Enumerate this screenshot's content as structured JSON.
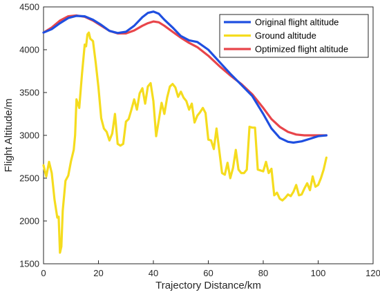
{
  "chart_data": {
    "type": "line",
    "xlabel": "Trajectory Distance/km",
    "ylabel": "Flight Altitude/m",
    "xlim": [
      0,
      120
    ],
    "ylim": [
      1500,
      4500
    ],
    "xticks": [
      0,
      20,
      40,
      60,
      80,
      100,
      120
    ],
    "yticks": [
      1500,
      2000,
      2500,
      3000,
      3500,
      4000,
      4500
    ],
    "grid": false,
    "legend_position": "top-right",
    "series": [
      {
        "name": "Original flight altitude",
        "color": "#1f4fe0",
        "x": [
          0,
          3,
          6,
          9,
          12,
          15,
          18,
          21,
          24,
          27,
          30,
          33,
          36,
          38,
          40,
          42,
          44,
          47,
          50,
          53,
          56,
          60,
          64,
          68,
          72,
          76,
          80,
          83,
          86,
          89,
          91,
          94,
          97,
          100,
          103
        ],
        "y": [
          4200,
          4240,
          4310,
          4370,
          4395,
          4390,
          4350,
          4290,
          4220,
          4195,
          4210,
          4280,
          4380,
          4430,
          4445,
          4420,
          4350,
          4260,
          4160,
          4110,
          4090,
          4000,
          3860,
          3720,
          3590,
          3460,
          3250,
          3080,
          2970,
          2925,
          2915,
          2930,
          2960,
          2990,
          3000
        ]
      },
      {
        "name": "Ground altitude",
        "color": "#f5dc1e",
        "x": [
          0,
          0.5,
          1,
          2,
          3,
          4,
          5,
          5.5,
          6,
          6.5,
          7,
          8,
          9,
          10,
          11,
          11.5,
          12,
          13,
          14,
          15,
          15.5,
          16,
          16.5,
          17,
          18,
          19,
          20,
          21,
          22,
          23,
          24,
          25,
          26,
          27,
          28,
          29,
          30,
          31,
          32,
          33,
          34,
          35,
          36,
          37,
          38,
          39,
          40,
          41,
          42,
          43,
          44,
          45,
          46,
          47,
          48,
          49,
          50,
          51,
          52,
          53,
          54,
          55,
          56,
          57,
          58,
          59,
          60,
          61,
          62,
          63,
          64,
          65,
          66,
          67,
          68,
          69,
          70,
          71,
          72,
          73,
          74,
          75,
          76,
          77,
          78,
          79,
          80,
          81,
          82,
          83,
          84,
          85,
          86,
          87,
          88,
          89,
          90,
          91,
          92,
          93,
          94,
          95,
          96,
          97,
          98,
          99,
          100,
          101,
          102,
          103
        ],
        "y": [
          2650,
          2580,
          2520,
          2690,
          2560,
          2250,
          2040,
          2050,
          1630,
          1700,
          2120,
          2470,
          2530,
          2700,
          2830,
          3000,
          3420,
          3320,
          3720,
          4060,
          4040,
          4180,
          4200,
          4130,
          4100,
          3850,
          3560,
          3200,
          3080,
          3040,
          2940,
          3020,
          3250,
          2900,
          2880,
          2900,
          3160,
          3190,
          3300,
          3420,
          3300,
          3490,
          3550,
          3370,
          3570,
          3610,
          3400,
          2990,
          3180,
          3380,
          3250,
          3440,
          3570,
          3600,
          3560,
          3450,
          3510,
          3440,
          3400,
          3300,
          3370,
          3150,
          3230,
          3270,
          3320,
          3260,
          2950,
          2940,
          2840,
          3080,
          2820,
          2560,
          2540,
          2680,
          2500,
          2620,
          2830,
          2600,
          2560,
          2560,
          2600,
          3100,
          3090,
          3090,
          2600,
          2590,
          2580,
          2690,
          2560,
          2610,
          2300,
          2330,
          2260,
          2240,
          2270,
          2310,
          2290,
          2340,
          2420,
          2300,
          2310,
          2380,
          2440,
          2360,
          2520,
          2400,
          2420,
          2500,
          2600,
          2740
        ]
      },
      {
        "name": "Optimized flight altitude",
        "color": "#e8454a",
        "x": [
          0,
          3,
          6,
          9,
          12,
          15,
          18,
          21,
          24,
          27,
          30,
          33,
          36,
          38,
          40,
          42,
          44,
          47,
          50,
          53,
          56,
          60,
          64,
          68,
          72,
          76,
          80,
          83,
          86,
          89,
          92,
          95,
          98,
          101,
          103
        ],
        "y": [
          4200,
          4260,
          4340,
          4390,
          4400,
          4385,
          4340,
          4280,
          4220,
          4190,
          4190,
          4225,
          4280,
          4310,
          4330,
          4320,
          4280,
          4210,
          4140,
          4080,
          4030,
          3930,
          3810,
          3700,
          3600,
          3480,
          3320,
          3190,
          3100,
          3040,
          3010,
          3000,
          3000,
          3000,
          3000
        ]
      }
    ]
  }
}
